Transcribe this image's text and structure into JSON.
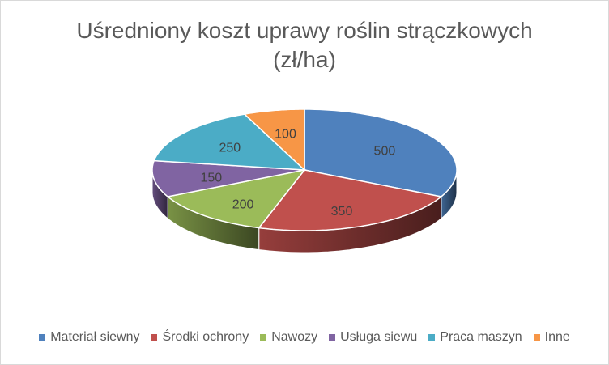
{
  "chart_data": {
    "type": "pie",
    "title_line1": "Uśredniony koszt uprawy roślin strączkowych",
    "title_line2": "(zł/ha)",
    "slices": [
      {
        "label": "Materiał siewny",
        "value": 500,
        "color": "#4F81BD"
      },
      {
        "label": "Środki ochrony",
        "value": 350,
        "color": "#C0504D"
      },
      {
        "label": "Nawozy",
        "value": 200,
        "color": "#9BBB59"
      },
      {
        "label": "Usługa siewu",
        "value": 150,
        "color": "#8064A2"
      },
      {
        "label": "Praca maszyn",
        "value": 250,
        "color": "#4BACC6"
      },
      {
        "label": "Inne",
        "value": 100,
        "color": "#F79646"
      }
    ],
    "legend_position": "bottom",
    "style": "3d"
  }
}
